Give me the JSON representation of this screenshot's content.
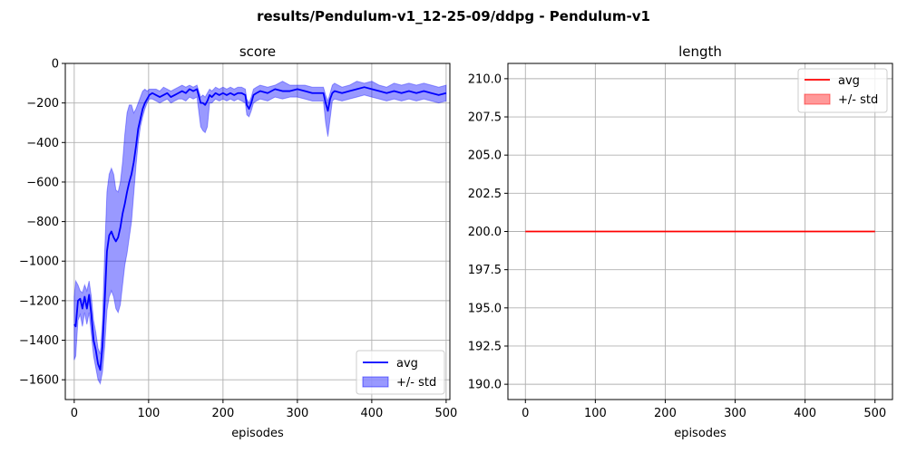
{
  "figure_title": "results/Pendulum-v1_12-25-09/ddpg - Pendulum-v1",
  "chart_data": [
    {
      "type": "line",
      "title": "score",
      "xlabel": "episodes",
      "ylabel": "",
      "xlim": [
        -12,
        505
      ],
      "ylim": [
        -1700,
        0
      ],
      "xticks": [
        0,
        100,
        200,
        300,
        400,
        500
      ],
      "yticks": [
        0,
        -200,
        -400,
        -600,
        -800,
        -1000,
        -1200,
        -1400,
        -1600
      ],
      "grid": true,
      "legend_position": "lower-right",
      "series": [
        {
          "name": "avg",
          "color": "#0000ff",
          "x": [
            0,
            2,
            5,
            8,
            11,
            14,
            17,
            20,
            23,
            26,
            29,
            32,
            35,
            38,
            41,
            44,
            47,
            50,
            53,
            56,
            59,
            62,
            65,
            68,
            71,
            74,
            77,
            80,
            83,
            86,
            89,
            92,
            95,
            98,
            101,
            105,
            110,
            115,
            120,
            125,
            130,
            135,
            140,
            145,
            150,
            155,
            160,
            165,
            170,
            173,
            176,
            179,
            182,
            185,
            190,
            195,
            200,
            205,
            210,
            215,
            220,
            225,
            230,
            232,
            235,
            238,
            241,
            245,
            250,
            260,
            270,
            280,
            290,
            300,
            310,
            320,
            330,
            335,
            338,
            341,
            344,
            347,
            350,
            360,
            370,
            380,
            390,
            400,
            410,
            420,
            430,
            440,
            450,
            460,
            470,
            480,
            490,
            500
          ],
          "y": [
            -1320,
            -1330,
            -1200,
            -1190,
            -1240,
            -1180,
            -1240,
            -1170,
            -1270,
            -1400,
            -1450,
            -1520,
            -1550,
            -1430,
            -1200,
            -950,
            -870,
            -850,
            -880,
            -900,
            -880,
            -830,
            -760,
            -710,
            -650,
            -600,
            -560,
            -500,
            -420,
            -330,
            -280,
            -230,
            -200,
            -180,
            -160,
            -150,
            -160,
            -170,
            -160,
            -150,
            -170,
            -160,
            -150,
            -140,
            -150,
            -130,
            -140,
            -130,
            -200,
            -200,
            -210,
            -190,
            -160,
            -170,
            -150,
            -160,
            -150,
            -160,
            -150,
            -160,
            -150,
            -150,
            -160,
            -210,
            -230,
            -200,
            -160,
            -150,
            -140,
            -150,
            -130,
            -140,
            -140,
            -130,
            -140,
            -150,
            -150,
            -150,
            -200,
            -240,
            -180,
            -150,
            -140,
            -150,
            -140,
            -130,
            -120,
            -130,
            -140,
            -150,
            -140,
            -150,
            -140,
            -150,
            -140,
            -150,
            -160,
            -150
          ]
        },
        {
          "name": "+/- std",
          "color": "#0000ff",
          "kind": "band",
          "x": [
            0,
            2,
            5,
            8,
            11,
            14,
            17,
            20,
            23,
            26,
            29,
            32,
            35,
            38,
            41,
            44,
            47,
            50,
            53,
            56,
            59,
            62,
            65,
            68,
            71,
            74,
            77,
            80,
            83,
            86,
            89,
            92,
            95,
            98,
            101,
            105,
            110,
            115,
            120,
            125,
            130,
            135,
            140,
            145,
            150,
            155,
            160,
            165,
            170,
            173,
            176,
            179,
            182,
            185,
            190,
            195,
            200,
            205,
            210,
            215,
            220,
            225,
            230,
            232,
            235,
            238,
            241,
            245,
            250,
            260,
            270,
            280,
            290,
            300,
            310,
            320,
            330,
            335,
            338,
            341,
            344,
            347,
            350,
            360,
            370,
            380,
            390,
            400,
            410,
            420,
            430,
            440,
            450,
            460,
            470,
            480,
            490,
            500
          ],
          "upper": [
            -1180,
            -1100,
            -1120,
            -1150,
            -1160,
            -1120,
            -1150,
            -1100,
            -1180,
            -1300,
            -1360,
            -1440,
            -1470,
            -1300,
            -950,
            -650,
            -560,
            -530,
            -560,
            -640,
            -650,
            -600,
            -500,
            -360,
            -250,
            -210,
            -210,
            -250,
            -230,
            -200,
            -170,
            -140,
            -130,
            -140,
            -130,
            -130,
            -130,
            -140,
            -120,
            -130,
            -140,
            -130,
            -120,
            -110,
            -120,
            -110,
            -120,
            -110,
            -170,
            -160,
            -170,
            -150,
            -130,
            -140,
            -120,
            -130,
            -120,
            -130,
            -120,
            -130,
            -120,
            -120,
            -130,
            -180,
            -200,
            -170,
            -130,
            -120,
            -110,
            -120,
            -110,
            -90,
            -110,
            -110,
            -110,
            -120,
            -120,
            -120,
            -160,
            -190,
            -150,
            -110,
            -100,
            -120,
            -110,
            -90,
            -100,
            -90,
            -110,
            -120,
            -100,
            -110,
            -100,
            -110,
            -100,
            -110,
            -120,
            -110
          ],
          "lower": [
            -1500,
            -1480,
            -1300,
            -1270,
            -1330,
            -1260,
            -1320,
            -1260,
            -1370,
            -1480,
            -1540,
            -1600,
            -1620,
            -1560,
            -1430,
            -1250,
            -1180,
            -1150,
            -1180,
            -1240,
            -1260,
            -1220,
            -1120,
            -1020,
            -960,
            -880,
            -800,
            -660,
            -520,
            -400,
            -320,
            -270,
            -230,
            -200,
            -180,
            -180,
            -190,
            -200,
            -190,
            -180,
            -200,
            -190,
            -180,
            -180,
            -190,
            -170,
            -180,
            -170,
            -320,
            -340,
            -350,
            -320,
            -200,
            -200,
            -180,
            -190,
            -180,
            -190,
            -180,
            -190,
            -180,
            -190,
            -200,
            -260,
            -270,
            -240,
            -200,
            -190,
            -180,
            -190,
            -170,
            -180,
            -170,
            -170,
            -180,
            -190,
            -190,
            -190,
            -300,
            -370,
            -280,
            -190,
            -180,
            -190,
            -180,
            -170,
            -160,
            -170,
            -180,
            -190,
            -180,
            -190,
            -180,
            -190,
            -180,
            -190,
            -200,
            -190
          ]
        }
      ]
    },
    {
      "type": "line",
      "title": "length",
      "xlabel": "episodes",
      "ylabel": "",
      "xlim": [
        -25,
        525
      ],
      "ylim": [
        189,
        211
      ],
      "xticks": [
        0,
        100,
        200,
        300,
        400,
        500
      ],
      "yticks": [
        190.0,
        192.5,
        195.0,
        197.5,
        200.0,
        202.5,
        205.0,
        207.5,
        210.0
      ],
      "grid": true,
      "legend_position": "upper-right",
      "series": [
        {
          "name": "avg",
          "color": "#ff0000",
          "x": [
            0,
            500
          ],
          "y": [
            200,
            200
          ]
        },
        {
          "name": "+/- std",
          "color": "#ff0000",
          "kind": "band",
          "x": [
            0,
            500
          ],
          "upper": [
            200,
            200
          ],
          "lower": [
            200,
            200
          ]
        }
      ]
    }
  ]
}
